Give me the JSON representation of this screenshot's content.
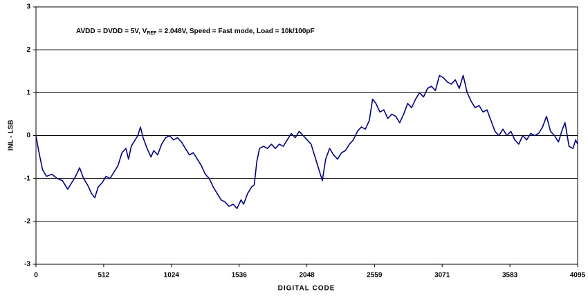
{
  "chart_data": {
    "type": "line",
    "annotation": {
      "text_before": "AVDD = DVDD = 5V, V",
      "subscript": "REF",
      "text_after": " = 2.048V, Speed = Fast mode, Load = 10k/100pF"
    },
    "xlabel": "DIGITAL CODE",
    "ylabel": "INL - LSB",
    "xlim": [
      0,
      4095
    ],
    "ylim": [
      -3,
      3
    ],
    "xticks": [
      0,
      512,
      1024,
      1536,
      2048,
      2559,
      3071,
      3583,
      4095
    ],
    "yticks": [
      -3,
      -2,
      -1,
      0,
      1,
      2,
      3
    ],
    "grid": true,
    "series": [
      {
        "color": "#000080",
        "x": [
          0,
          20,
          50,
          80,
          120,
          160,
          200,
          240,
          270,
          300,
          330,
          360,
          390,
          420,
          445,
          470,
          500,
          530,
          560,
          590,
          620,
          650,
          680,
          700,
          720,
          750,
          770,
          790,
          810,
          840,
          870,
          890,
          920,
          950,
          980,
          1010,
          1040,
          1070,
          1100,
          1130,
          1160,
          1190,
          1220,
          1250,
          1280,
          1310,
          1340,
          1370,
          1400,
          1430,
          1460,
          1490,
          1520,
          1550,
          1570,
          1600,
          1630,
          1650,
          1670,
          1690,
          1720,
          1750,
          1780,
          1810,
          1840,
          1870,
          1900,
          1930,
          1960,
          1990,
          2020,
          2050,
          2080,
          2110,
          2140,
          2165,
          2190,
          2220,
          2250,
          2280,
          2310,
          2340,
          2370,
          2400,
          2430,
          2460,
          2490,
          2520,
          2545,
          2570,
          2600,
          2630,
          2660,
          2690,
          2720,
          2750,
          2780,
          2810,
          2840,
          2870,
          2900,
          2930,
          2960,
          2990,
          3020,
          3050,
          3080,
          3110,
          3140,
          3170,
          3200,
          3230,
          3260,
          3290,
          3320,
          3350,
          3380,
          3410,
          3440,
          3470,
          3500,
          3530,
          3560,
          3590,
          3620,
          3650,
          3680,
          3710,
          3740,
          3770,
          3800,
          3830,
          3860,
          3890,
          3920,
          3950,
          3980,
          4000,
          4030,
          4060,
          4080,
          4095
        ],
        "values": [
          0,
          -0.35,
          -0.8,
          -0.95,
          -0.9,
          -1.0,
          -1.05,
          -1.25,
          -1.1,
          -0.95,
          -0.75,
          -1.0,
          -1.15,
          -1.35,
          -1.45,
          -1.2,
          -1.1,
          -0.95,
          -1.0,
          -0.85,
          -0.7,
          -0.4,
          -0.3,
          -0.55,
          -0.25,
          -0.1,
          0.0,
          0.2,
          -0.05,
          -0.3,
          -0.5,
          -0.35,
          -0.45,
          -0.2,
          -0.05,
          0.0,
          -0.1,
          -0.05,
          -0.15,
          -0.3,
          -0.45,
          -0.4,
          -0.55,
          -0.7,
          -0.9,
          -1.0,
          -1.2,
          -1.35,
          -1.5,
          -1.55,
          -1.65,
          -1.6,
          -1.7,
          -1.5,
          -1.6,
          -1.35,
          -1.2,
          -1.15,
          -0.6,
          -0.3,
          -0.25,
          -0.3,
          -0.2,
          -0.3,
          -0.2,
          -0.25,
          -0.1,
          0.05,
          -0.05,
          0.1,
          0.0,
          -0.1,
          -0.2,
          -0.5,
          -0.8,
          -1.05,
          -0.55,
          -0.3,
          -0.45,
          -0.55,
          -0.4,
          -0.35,
          -0.2,
          -0.1,
          0.1,
          0.2,
          0.15,
          0.35,
          0.85,
          0.75,
          0.55,
          0.6,
          0.4,
          0.5,
          0.45,
          0.3,
          0.5,
          0.75,
          0.65,
          0.85,
          1.0,
          0.9,
          1.1,
          1.15,
          1.05,
          1.4,
          1.35,
          1.25,
          1.2,
          1.3,
          1.1,
          1.4,
          1.0,
          0.8,
          0.65,
          0.7,
          0.55,
          0.6,
          0.35,
          0.1,
          0.0,
          0.15,
          0.0,
          0.1,
          -0.1,
          -0.2,
          0.0,
          -0.1,
          0.05,
          0.0,
          0.05,
          0.2,
          0.45,
          0.1,
          0.0,
          -0.15,
          0.15,
          0.3,
          -0.25,
          -0.3,
          -0.1,
          -0.2
        ]
      }
    ]
  }
}
